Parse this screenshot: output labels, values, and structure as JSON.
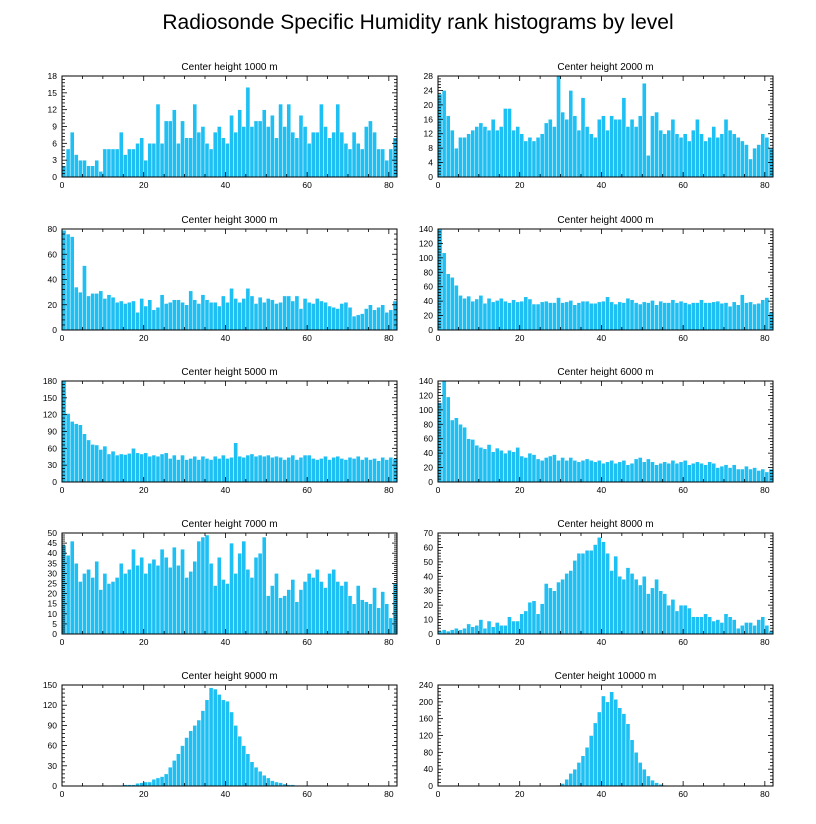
{
  "figure": {
    "title": "Radiosonde Specific Humidity rank histograms by level"
  },
  "colors": {
    "bar": "#1ec0f4",
    "bar_edge": "#ffffff",
    "axis": "#000000"
  },
  "chart_data": [
    {
      "type": "bar",
      "title": "Center height 1000 m",
      "xlabel": "",
      "ylabel": "",
      "xlim": [
        0,
        82
      ],
      "ylim": [
        0,
        18
      ],
      "x_ticks": [
        0,
        20,
        40,
        60,
        80
      ],
      "y_ticks": [
        0,
        3,
        6,
        9,
        12,
        15,
        18
      ],
      "values": [
        2,
        5,
        8,
        4,
        3,
        3,
        2,
        2,
        3,
        1,
        5,
        5,
        5,
        5,
        8,
        4,
        5,
        5,
        6,
        7,
        3,
        6,
        6,
        13,
        6,
        10,
        10,
        12,
        6,
        10,
        7,
        7,
        13,
        8,
        9,
        6,
        5,
        8,
        9,
        7,
        6,
        11,
        8,
        12,
        9,
        16,
        9,
        10,
        10,
        12,
        9,
        11,
        7,
        13,
        9,
        13,
        8,
        7,
        11,
        9,
        6,
        8,
        8,
        13,
        9,
        7,
        8,
        13,
        8,
        6,
        5,
        8,
        6,
        5,
        9,
        10,
        8,
        5,
        5,
        3,
        5,
        7
      ]
    },
    {
      "type": "bar",
      "title": "Center height 2000 m",
      "xlabel": "",
      "ylabel": "",
      "xlim": [
        0,
        82
      ],
      "ylim": [
        0,
        28
      ],
      "x_ticks": [
        0,
        20,
        40,
        60,
        80
      ],
      "y_ticks": [
        0,
        4,
        8,
        12,
        16,
        20,
        24,
        28
      ],
      "values": [
        23,
        24,
        17,
        13,
        8,
        11,
        11,
        12,
        13,
        14,
        15,
        14,
        13,
        16,
        13,
        14,
        19,
        19,
        13,
        14,
        12,
        10,
        11,
        10,
        11,
        12,
        15,
        16,
        14,
        28,
        18,
        16,
        24,
        17,
        13,
        22,
        14,
        12,
        11,
        16,
        17,
        13,
        17,
        16,
        16,
        22,
        14,
        16,
        14,
        17,
        26,
        6,
        17,
        18,
        13,
        12,
        13,
        16,
        12,
        11,
        12,
        10,
        13,
        16,
        12,
        10,
        11,
        14,
        11,
        12,
        16,
        13,
        12,
        11,
        10,
        9,
        5,
        8,
        9,
        12,
        11,
        8
      ]
    },
    {
      "type": "bar",
      "title": "Center height 3000 m",
      "xlabel": "",
      "ylabel": "",
      "xlim": [
        0,
        82
      ],
      "ylim": [
        0,
        80
      ],
      "x_ticks": [
        0,
        20,
        40,
        60,
        80
      ],
      "y_ticks": [
        0,
        20,
        40,
        60,
        80
      ],
      "values": [
        79,
        76,
        74,
        34,
        30,
        51,
        27,
        29,
        29,
        31,
        25,
        28,
        26,
        22,
        23,
        21,
        22,
        23,
        14,
        25,
        19,
        24,
        16,
        18,
        28,
        21,
        22,
        24,
        24,
        22,
        20,
        31,
        24,
        21,
        28,
        24,
        22,
        22,
        19,
        27,
        22,
        33,
        25,
        22,
        25,
        33,
        27,
        21,
        26,
        22,
        25,
        24,
        21,
        22,
        27,
        27,
        23,
        27,
        17,
        25,
        22,
        21,
        25,
        23,
        22,
        19,
        18,
        17,
        21,
        22,
        18,
        11,
        12,
        13,
        17,
        20,
        16,
        18,
        20,
        14,
        16,
        23
      ]
    },
    {
      "type": "bar",
      "title": "Center height 4000 m",
      "xlabel": "",
      "ylabel": "",
      "xlim": [
        0,
        82
      ],
      "ylim": [
        0,
        140
      ],
      "x_ticks": [
        0,
        20,
        40,
        60,
        80
      ],
      "y_ticks": [
        0,
        20,
        40,
        60,
        80,
        100,
        120,
        140
      ],
      "values": [
        140,
        107,
        78,
        73,
        62,
        48,
        44,
        47,
        40,
        43,
        48,
        37,
        44,
        39,
        41,
        44,
        40,
        38,
        42,
        39,
        40,
        46,
        43,
        36,
        36,
        39,
        40,
        38,
        38,
        45,
        38,
        39,
        41,
        35,
        38,
        40,
        40,
        37,
        37,
        39,
        40,
        46,
        39,
        36,
        39,
        38,
        44,
        42,
        38,
        36,
        39,
        38,
        41,
        35,
        40,
        38,
        38,
        42,
        38,
        40,
        38,
        36,
        38,
        38,
        42,
        38,
        38,
        39,
        40,
        37,
        38,
        33,
        39,
        35,
        49,
        38,
        39,
        36,
        37,
        42,
        45,
        25
      ]
    },
    {
      "type": "bar",
      "title": "Center height 5000 m",
      "xlabel": "",
      "ylabel": "",
      "xlim": [
        0,
        82
      ],
      "ylim": [
        0,
        180
      ],
      "x_ticks": [
        0,
        20,
        40,
        60,
        80
      ],
      "y_ticks": [
        0,
        30,
        60,
        90,
        120,
        150,
        180
      ],
      "values": [
        180,
        122,
        108,
        104,
        102,
        86,
        75,
        67,
        66,
        58,
        64,
        50,
        55,
        48,
        50,
        49,
        51,
        60,
        52,
        50,
        52,
        46,
        48,
        46,
        50,
        52,
        42,
        48,
        40,
        48,
        40,
        42,
        46,
        40,
        46,
        42,
        40,
        46,
        42,
        48,
        42,
        44,
        70,
        46,
        44,
        48,
        50,
        46,
        48,
        46,
        48,
        44,
        46,
        44,
        40,
        44,
        48,
        40,
        44,
        48,
        48,
        42,
        40,
        42,
        46,
        40,
        44,
        46,
        42,
        40,
        44,
        42,
        46,
        40,
        44,
        40,
        42,
        38,
        44,
        40,
        44,
        42
      ]
    },
    {
      "type": "bar",
      "title": "Center height 6000 m",
      "xlabel": "",
      "ylabel": "",
      "xlim": [
        0,
        82
      ],
      "ylim": [
        0,
        140
      ],
      "x_ticks": [
        0,
        20,
        40,
        60,
        80
      ],
      "y_ticks": [
        0,
        20,
        40,
        60,
        80,
        100,
        120,
        140
      ],
      "values": [
        110,
        140,
        118,
        86,
        89,
        80,
        76,
        60,
        59,
        51,
        48,
        46,
        52,
        42,
        47,
        44,
        40,
        44,
        42,
        48,
        36,
        34,
        40,
        38,
        32,
        30,
        34,
        36,
        38,
        30,
        34,
        30,
        34,
        30,
        28,
        30,
        32,
        30,
        28,
        30,
        26,
        28,
        30,
        26,
        28,
        30,
        24,
        26,
        32,
        34,
        28,
        32,
        28,
        24,
        26,
        28,
        26,
        30,
        26,
        28,
        30,
        24,
        26,
        28,
        26,
        24,
        28,
        26,
        20,
        22,
        24,
        20,
        24,
        18,
        18,
        22,
        18,
        20,
        16,
        18,
        14,
        18
      ]
    },
    {
      "type": "bar",
      "title": "Center height 7000 m",
      "xlabel": "",
      "ylabel": "",
      "xlim": [
        0,
        82
      ],
      "ylim": [
        0,
        50
      ],
      "x_ticks": [
        0,
        20,
        40,
        60,
        80
      ],
      "y_ticks": [
        0,
        5,
        10,
        15,
        20,
        25,
        30,
        35,
        40,
        45,
        50
      ],
      "values": [
        44,
        39,
        46,
        35,
        26,
        30,
        32,
        28,
        36,
        22,
        30,
        25,
        26,
        28,
        35,
        30,
        32,
        42,
        34,
        38,
        30,
        35,
        37,
        34,
        42,
        38,
        33,
        43,
        34,
        42,
        28,
        31,
        36,
        46,
        48,
        49,
        35,
        24,
        38,
        27,
        25,
        45,
        30,
        40,
        46,
        32,
        28,
        38,
        40,
        48,
        19,
        24,
        30,
        18,
        19,
        22,
        27,
        16,
        22,
        26,
        30,
        28,
        32,
        26,
        23,
        30,
        32,
        26,
        24,
        26,
        19,
        15,
        24,
        17,
        16,
        15,
        23,
        13,
        21,
        15,
        8,
        25
      ]
    },
    {
      "type": "bar",
      "title": "Center height 8000 m",
      "xlabel": "",
      "ylabel": "",
      "xlim": [
        0,
        82
      ],
      "ylim": [
        0,
        70
      ],
      "x_ticks": [
        0,
        20,
        40,
        60,
        80
      ],
      "y_ticks": [
        0,
        10,
        20,
        30,
        40,
        50,
        60,
        70
      ],
      "values": [
        2,
        3,
        2,
        3,
        4,
        3,
        4,
        7,
        5,
        6,
        10,
        4,
        9,
        5,
        8,
        6,
        6,
        12,
        9,
        9,
        14,
        16,
        22,
        23,
        14,
        21,
        35,
        32,
        30,
        36,
        38,
        42,
        44,
        51,
        56,
        56,
        58,
        58,
        62,
        67,
        64,
        56,
        44,
        54,
        40,
        38,
        46,
        42,
        38,
        34,
        40,
        28,
        32,
        38,
        30,
        28,
        20,
        24,
        16,
        20,
        20,
        18,
        12,
        12,
        12,
        14,
        12,
        9,
        10,
        8,
        14,
        12,
        10,
        4,
        6,
        8,
        8,
        6,
        10,
        12,
        6,
        2
      ]
    },
    {
      "type": "bar",
      "title": "Center height 9000 m",
      "xlabel": "",
      "ylabel": "",
      "xlim": [
        0,
        82
      ],
      "ylim": [
        0,
        150
      ],
      "x_ticks": [
        0,
        20,
        40,
        60,
        80
      ],
      "y_ticks": [
        0,
        30,
        60,
        90,
        120,
        150
      ],
      "values": [
        0,
        0,
        0,
        0,
        0,
        0,
        0,
        0,
        0,
        0,
        1,
        0,
        1,
        1,
        1,
        2,
        2,
        2,
        4,
        5,
        6,
        6,
        10,
        12,
        14,
        18,
        28,
        38,
        48,
        60,
        72,
        82,
        90,
        98,
        112,
        128,
        146,
        144,
        136,
        128,
        126,
        110,
        90,
        74,
        60,
        48,
        36,
        28,
        22,
        16,
        12,
        8,
        6,
        5,
        3,
        2,
        2,
        1,
        1,
        1,
        1,
        1,
        1,
        0,
        0,
        1,
        0,
        0,
        0,
        0,
        0,
        0,
        0,
        0,
        0,
        0,
        0,
        0,
        0,
        0,
        0,
        0
      ]
    },
    {
      "type": "bar",
      "title": "Center height 10000 m",
      "xlabel": "",
      "ylabel": "",
      "xlim": [
        0,
        82
      ],
      "ylim": [
        0,
        240
      ],
      "x_ticks": [
        0,
        20,
        40,
        60,
        80
      ],
      "y_ticks": [
        0,
        40,
        80,
        120,
        160,
        200,
        240
      ],
      "values": [
        0,
        0,
        0,
        0,
        0,
        0,
        0,
        0,
        0,
        0,
        0,
        0,
        0,
        0,
        0,
        0,
        0,
        0,
        0,
        0,
        0,
        0,
        0,
        0,
        0,
        0,
        0,
        0,
        0,
        2,
        6,
        16,
        30,
        40,
        56,
        72,
        92,
        120,
        150,
        176,
        214,
        200,
        224,
        206,
        186,
        172,
        148,
        110,
        80,
        56,
        40,
        24,
        14,
        8,
        4,
        2,
        1,
        0,
        0,
        0,
        0,
        0,
        0,
        0,
        0,
        0,
        0,
        0,
        0,
        0,
        0,
        0,
        0,
        0,
        0,
        0,
        0,
        0,
        0,
        0,
        0,
        0
      ]
    }
  ]
}
